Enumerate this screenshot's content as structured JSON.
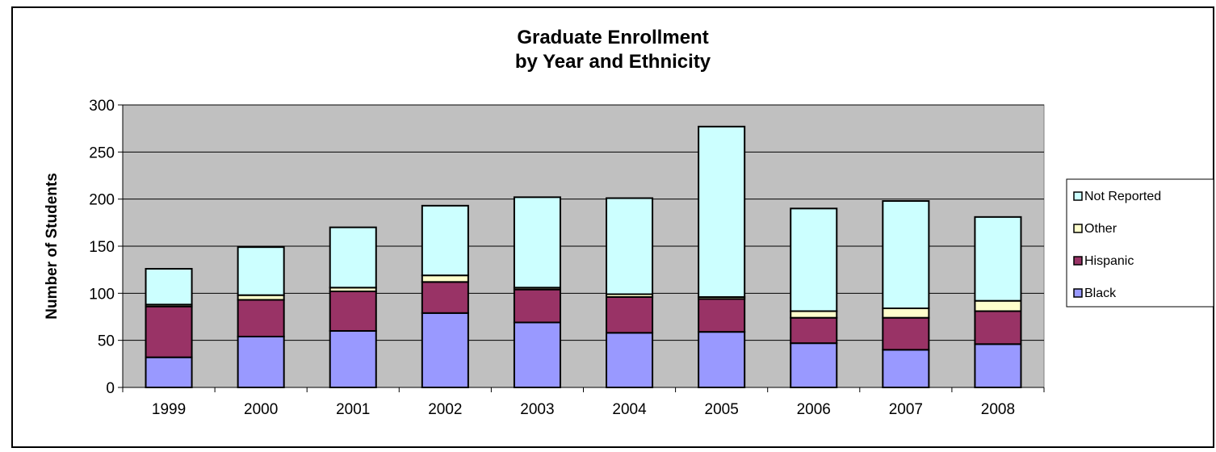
{
  "chart_data": {
    "type": "bar",
    "stacked": true,
    "title": "Graduate Enrollment",
    "subtitle": "by Year and Ethnicity",
    "xlabel": "",
    "ylabel": "Number of Students",
    "ylim": [
      0,
      300
    ],
    "yticks": [
      "0",
      "50",
      "100",
      "150",
      "200",
      "250",
      "300"
    ],
    "grid": true,
    "legend_position": "right",
    "categories": [
      "1999",
      "2000",
      "2001",
      "2002",
      "2003",
      "2004",
      "2005",
      "2006",
      "2007",
      "2008"
    ],
    "series": [
      {
        "name": "Black",
        "color": "#9999ff",
        "values": [
          32,
          54,
          60,
          79,
          69,
          58,
          59,
          47,
          40,
          46
        ]
      },
      {
        "name": "Hispanic",
        "color": "#993366",
        "values": [
          54,
          39,
          42,
          33,
          35,
          38,
          35,
          27,
          34,
          35
        ]
      },
      {
        "name": "Other",
        "color": "#ffffcc",
        "values": [
          2,
          5,
          4,
          7,
          2,
          3,
          2,
          7,
          10,
          11
        ]
      },
      {
        "name": "Not Reported",
        "color": "#ccffff",
        "values": [
          38,
          51,
          64,
          74,
          96,
          102,
          181,
          109,
          114,
          89
        ]
      }
    ],
    "plot_background": "#c0c0c0"
  }
}
